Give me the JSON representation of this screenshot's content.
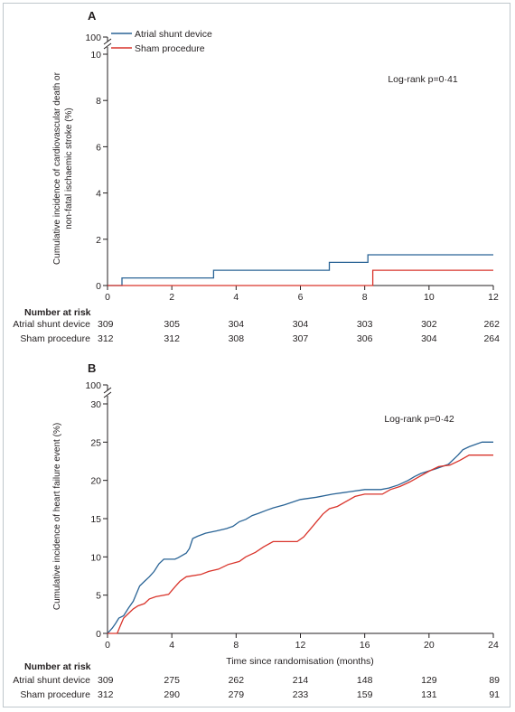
{
  "colors": {
    "shunt": "#2a6496",
    "sham": "#d9342b",
    "axis": "#231f20"
  },
  "risk_table": {
    "heading": "Number at risk"
  },
  "chart_data": [
    {
      "panel_label": "A",
      "type": "line",
      "title": "",
      "xlabel": "",
      "ylabel": "Cumulative incidence of cardiovascular death or non-fatal ischaemic stroke (%)",
      "xlim": [
        0,
        12
      ],
      "ylim": [
        0,
        10
      ],
      "axis_break_top": 100,
      "x_ticks": [
        0,
        2,
        4,
        6,
        8,
        10,
        12
      ],
      "y_ticks": [
        0,
        2,
        4,
        6,
        8,
        10
      ],
      "annotation": "Log-rank p=0·41",
      "legend": {
        "position": "top-left"
      },
      "series": [
        {
          "name": "Atrial shunt device",
          "color": "#2a6496",
          "points": [
            [
              0,
              0
            ],
            [
              0.45,
              0
            ],
            [
              0.45,
              0.33
            ],
            [
              3.3,
              0.33
            ],
            [
              3.3,
              0.66
            ],
            [
              6.9,
              0.66
            ],
            [
              6.9,
              1.0
            ],
            [
              8.1,
              1.0
            ],
            [
              8.1,
              1.33
            ],
            [
              12,
              1.33
            ]
          ]
        },
        {
          "name": "Sham procedure",
          "color": "#d9342b",
          "points": [
            [
              0,
              0
            ],
            [
              8.25,
              0
            ],
            [
              8.25,
              0.66
            ],
            [
              12,
              0.66
            ]
          ]
        }
      ],
      "risk_table": {
        "times": [
          0,
          2,
          4,
          6,
          8,
          10,
          12
        ],
        "rows": [
          {
            "label": "Atrial shunt device",
            "values": [
              "309",
              "305",
              "304",
              "304",
              "303",
              "302",
              "262"
            ]
          },
          {
            "label": "Sham procedure",
            "values": [
              "312",
              "312",
              "308",
              "307",
              "306",
              "304",
              "264"
            ]
          }
        ]
      }
    },
    {
      "panel_label": "B",
      "type": "line",
      "title": "",
      "xlabel": "Time since randomisation (months)",
      "ylabel": "Cumulative incidence of heart failure event (%)",
      "xlim": [
        0,
        24
      ],
      "ylim": [
        0,
        30
      ],
      "axis_break_top": 100,
      "x_ticks": [
        0,
        4,
        8,
        12,
        16,
        20,
        24
      ],
      "y_ticks": [
        0,
        5,
        10,
        15,
        20,
        25,
        30
      ],
      "annotation": "Log-rank p=0·42",
      "series": [
        {
          "name": "Atrial shunt device",
          "color": "#2a6496",
          "points": [
            [
              0,
              0
            ],
            [
              0.3,
              0.7
            ],
            [
              0.5,
              1.3
            ],
            [
              0.7,
              2.0
            ],
            [
              1.0,
              2.3
            ],
            [
              1.3,
              3.3
            ],
            [
              1.6,
              4.2
            ],
            [
              1.8,
              5.2
            ],
            [
              2.0,
              6.2
            ],
            [
              2.3,
              6.8
            ],
            [
              2.6,
              7.4
            ],
            [
              2.9,
              8.1
            ],
            [
              3.2,
              9.1
            ],
            [
              3.5,
              9.7
            ],
            [
              4.2,
              9.7
            ],
            [
              4.4,
              9.9
            ],
            [
              4.9,
              10.5
            ],
            [
              5.1,
              11.1
            ],
            [
              5.3,
              12.4
            ],
            [
              5.6,
              12.7
            ],
            [
              6.1,
              13.1
            ],
            [
              6.8,
              13.4
            ],
            [
              7.4,
              13.7
            ],
            [
              7.8,
              14.0
            ],
            [
              8.2,
              14.6
            ],
            [
              8.6,
              14.9
            ],
            [
              9.0,
              15.4
            ],
            [
              9.4,
              15.7
            ],
            [
              9.9,
              16.1
            ],
            [
              10.3,
              16.4
            ],
            [
              11.0,
              16.8
            ],
            [
              12.0,
              17.5
            ],
            [
              13.0,
              17.8
            ],
            [
              14.0,
              18.2
            ],
            [
              15.0,
              18.5
            ],
            [
              16.0,
              18.8
            ],
            [
              17.0,
              18.8
            ],
            [
              17.5,
              19.0
            ],
            [
              18.1,
              19.4
            ],
            [
              18.7,
              20.0
            ],
            [
              19.1,
              20.5
            ],
            [
              19.5,
              20.9
            ],
            [
              20.4,
              21.5
            ],
            [
              21.2,
              22.1
            ],
            [
              21.8,
              23.3
            ],
            [
              22.1,
              24.0
            ],
            [
              22.5,
              24.4
            ],
            [
              23.3,
              25.0
            ],
            [
              24.0,
              25.0
            ]
          ]
        },
        {
          "name": "Sham procedure",
          "color": "#d9342b",
          "points": [
            [
              0,
              0
            ],
            [
              0.6,
              0
            ],
            [
              0.8,
              1.0
            ],
            [
              1.0,
              2.0
            ],
            [
              1.3,
              2.6
            ],
            [
              1.6,
              3.2
            ],
            [
              1.9,
              3.6
            ],
            [
              2.3,
              3.9
            ],
            [
              2.6,
              4.5
            ],
            [
              3.0,
              4.8
            ],
            [
              3.8,
              5.1
            ],
            [
              4.2,
              6.1
            ],
            [
              4.5,
              6.8
            ],
            [
              4.9,
              7.4
            ],
            [
              5.8,
              7.7
            ],
            [
              6.3,
              8.1
            ],
            [
              6.9,
              8.4
            ],
            [
              7.5,
              9.0
            ],
            [
              8.2,
              9.4
            ],
            [
              8.6,
              10.0
            ],
            [
              9.2,
              10.6
            ],
            [
              9.7,
              11.3
            ],
            [
              10.3,
              12.0
            ],
            [
              11.8,
              12.0
            ],
            [
              12.2,
              12.6
            ],
            [
              12.6,
              13.6
            ],
            [
              13.0,
              14.6
            ],
            [
              13.4,
              15.6
            ],
            [
              13.8,
              16.3
            ],
            [
              14.3,
              16.6
            ],
            [
              14.8,
              17.2
            ],
            [
              15.4,
              17.9
            ],
            [
              16.0,
              18.2
            ],
            [
              17.1,
              18.2
            ],
            [
              17.6,
              18.8
            ],
            [
              18.2,
              19.2
            ],
            [
              18.8,
              19.8
            ],
            [
              19.4,
              20.5
            ],
            [
              20.0,
              21.2
            ],
            [
              20.6,
              21.8
            ],
            [
              21.3,
              22.0
            ],
            [
              21.9,
              22.6
            ],
            [
              22.5,
              23.3
            ],
            [
              24.0,
              23.3
            ]
          ]
        }
      ],
      "risk_table": {
        "times": [
          0,
          4,
          8,
          12,
          16,
          20,
          24
        ],
        "rows": [
          {
            "label": "Atrial shunt device",
            "values": [
              "309",
              "275",
              "262",
              "214",
              "148",
              "129",
              "89"
            ]
          },
          {
            "label": "Sham procedure",
            "values": [
              "312",
              "290",
              "279",
              "233",
              "159",
              "131",
              "91"
            ]
          }
        ]
      }
    }
  ]
}
